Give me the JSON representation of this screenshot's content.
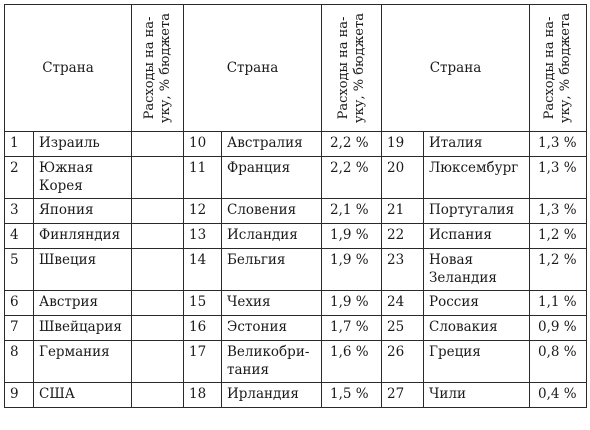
{
  "header": {
    "country_label": "Страна",
    "expense_label": "Расходы на на-уку, % бюджета"
  },
  "rows": [
    [
      {
        "n": "1",
        "c": "Израиль",
        "v": ""
      },
      {
        "n": "10",
        "c": "Австралия",
        "v": "2,2 %"
      },
      {
        "n": "19",
        "c": "Италия",
        "v": "1,3 %"
      }
    ],
    [
      {
        "n": "2",
        "c": "Южная Корея",
        "v": ""
      },
      {
        "n": "11",
        "c": "Франция",
        "v": "2,2 %"
      },
      {
        "n": "20",
        "c": "Люксембург",
        "v": "1,3 %"
      }
    ],
    [
      {
        "n": "3",
        "c": "Япония",
        "v": ""
      },
      {
        "n": "12",
        "c": "Словения",
        "v": "2,1 %"
      },
      {
        "n": "21",
        "c": "Португалия",
        "v": "1,3 %"
      }
    ],
    [
      {
        "n": "4",
        "c": "Финляндия",
        "v": ""
      },
      {
        "n": "13",
        "c": "Исландия",
        "v": "1,9 %"
      },
      {
        "n": "22",
        "c": "Испания",
        "v": "1,2 %"
      }
    ],
    [
      {
        "n": "5",
        "c": "Швеция",
        "v": ""
      },
      {
        "n": "14",
        "c": "Бельгия",
        "v": "1,9 %"
      },
      {
        "n": "23",
        "c": "Новая Зеландия",
        "v": "1,2 %"
      }
    ],
    [
      {
        "n": "6",
        "c": "Австрия",
        "v": ""
      },
      {
        "n": "15",
        "c": "Чехия",
        "v": "1,9 %"
      },
      {
        "n": "24",
        "c": "Россия",
        "v": "1,1 %"
      }
    ],
    [
      {
        "n": "7",
        "c": "Швейцария",
        "v": ""
      },
      {
        "n": "16",
        "c": "Эстония",
        "v": "1,7 %"
      },
      {
        "n": "25",
        "c": "Словакия",
        "v": "0,9 %"
      }
    ],
    [
      {
        "n": "8",
        "c": "Германия",
        "v": ""
      },
      {
        "n": "17",
        "c": "Великобри-тания",
        "v": "1,6 %"
      },
      {
        "n": "26",
        "c": "Греция",
        "v": "0,8 %"
      }
    ],
    [
      {
        "n": "9",
        "c": "США",
        "v": ""
      },
      {
        "n": "18",
        "c": "Ирландия",
        "v": "1,5 %"
      },
      {
        "n": "27",
        "c": "Чили",
        "v": "0,4 %"
      }
    ]
  ]
}
